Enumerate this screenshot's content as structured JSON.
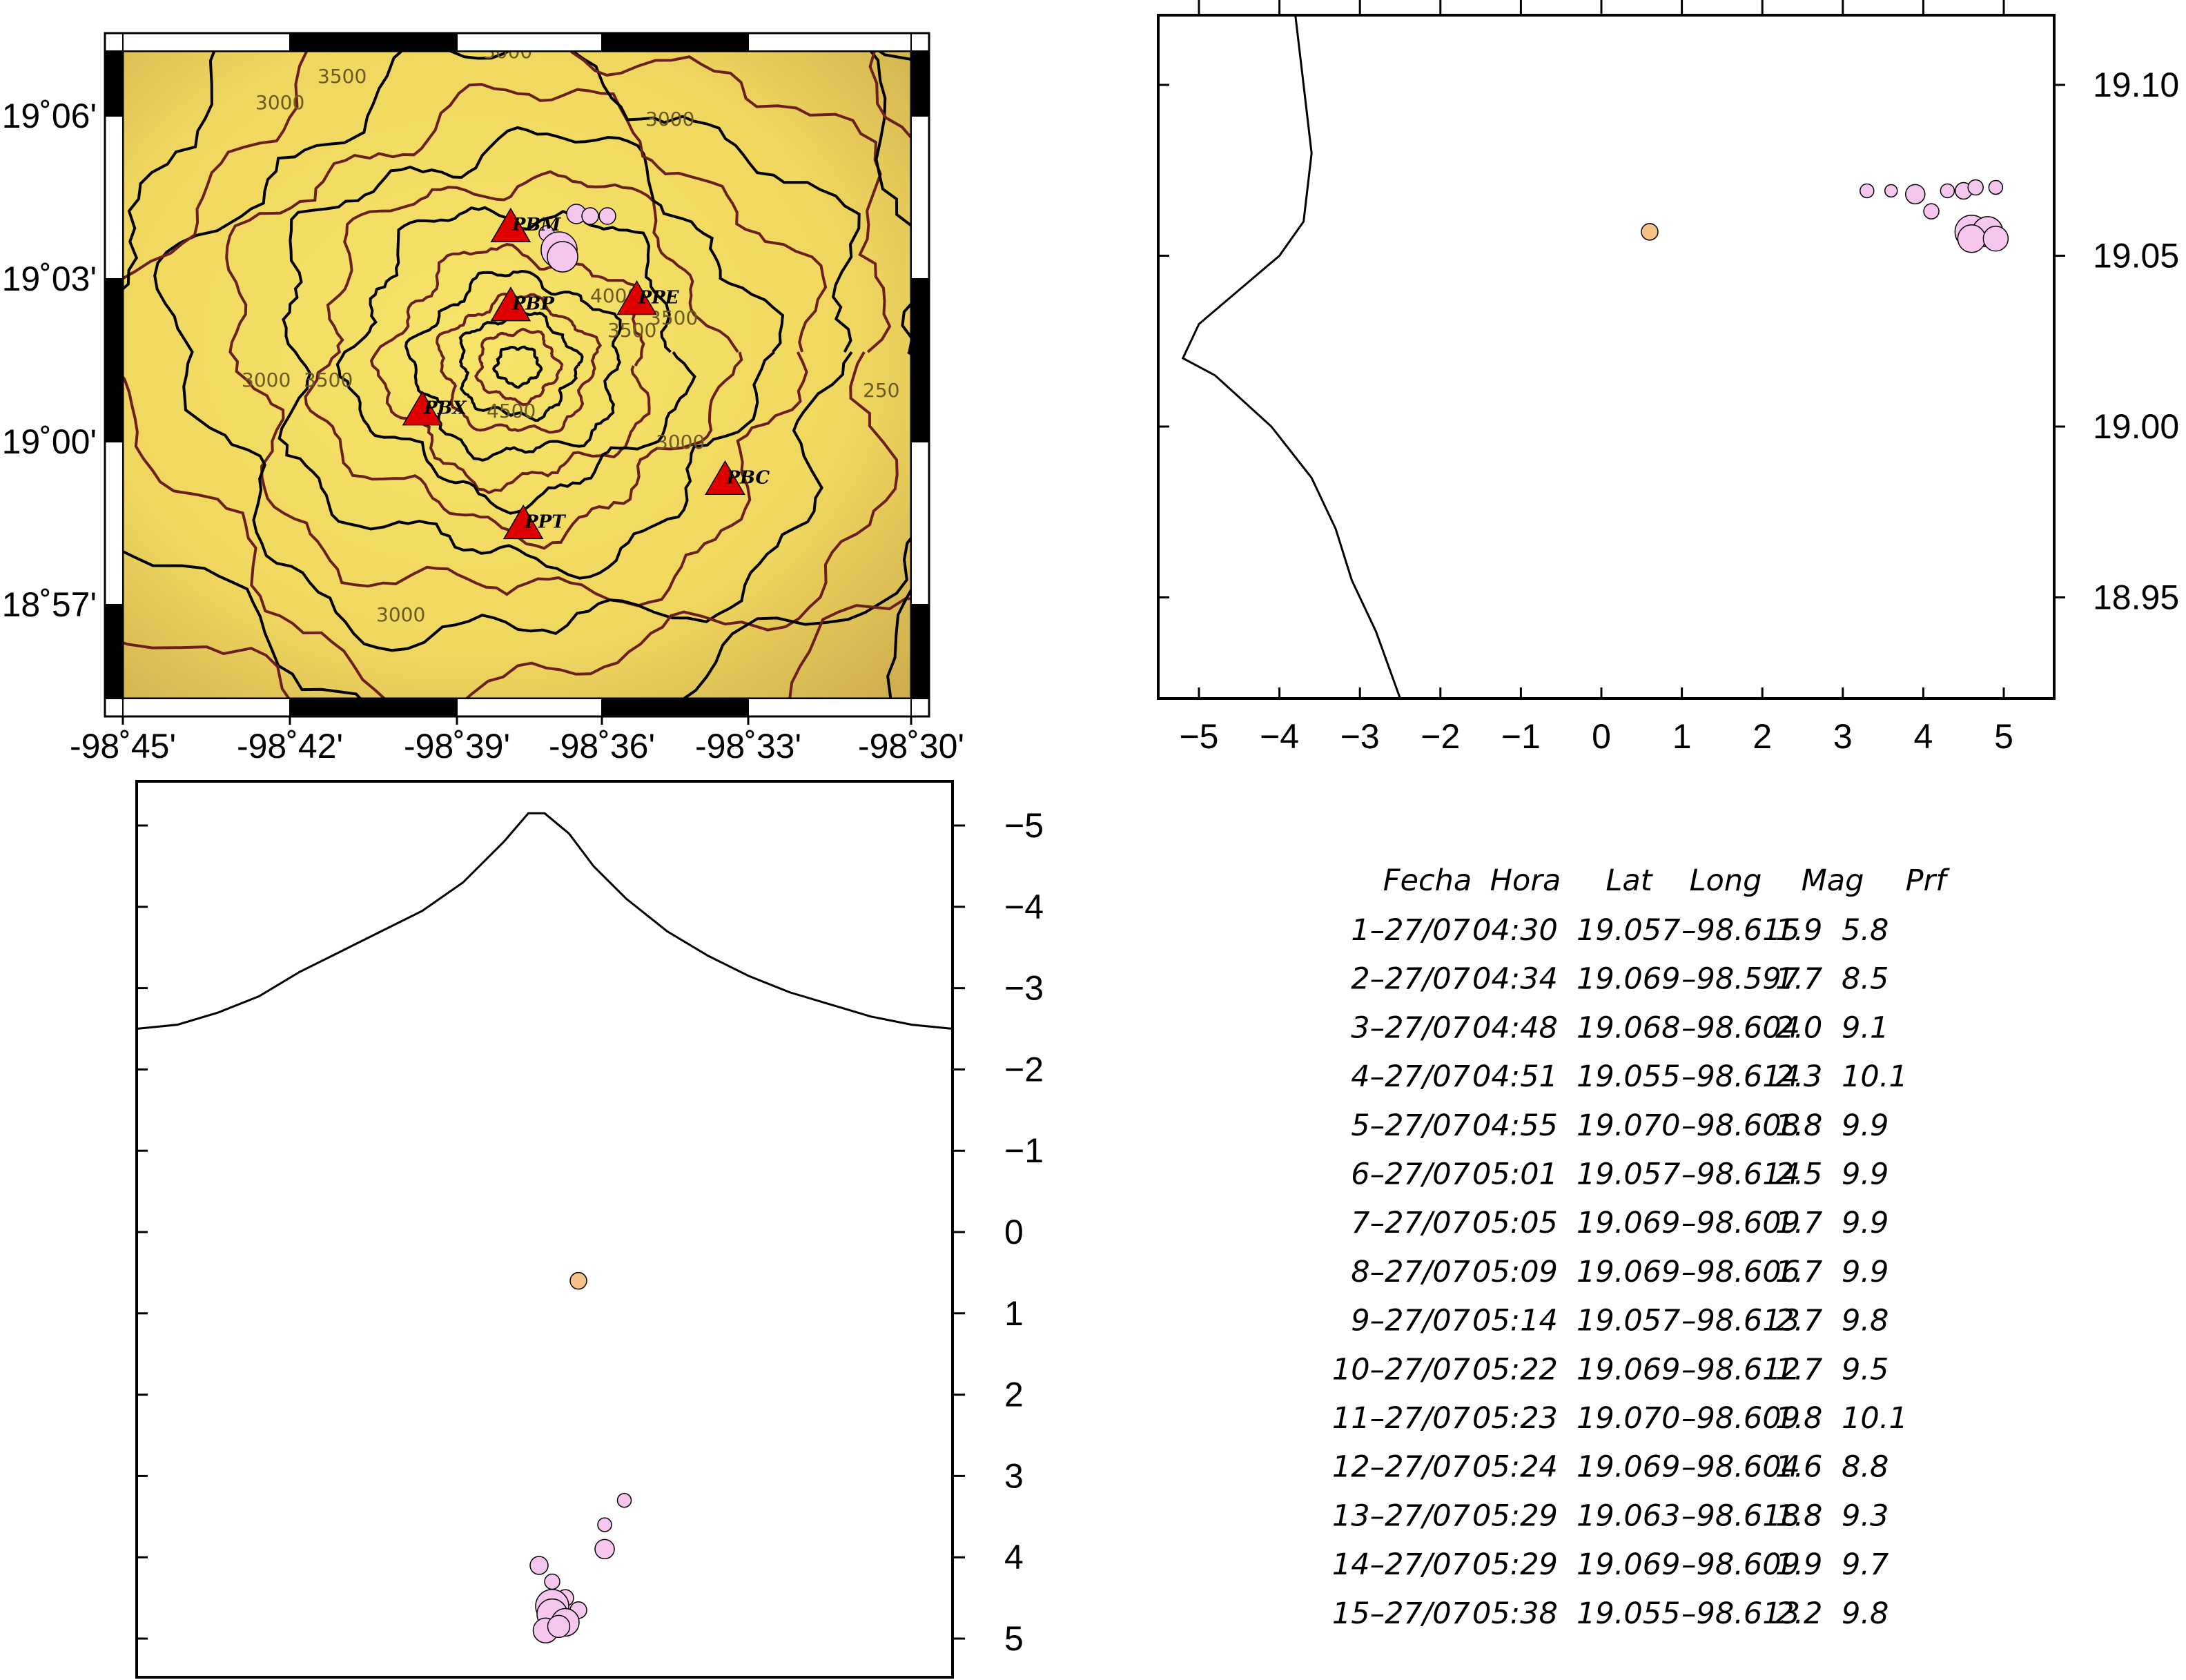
{
  "chart_data": [
    {
      "type": "scatter",
      "panel": "map",
      "x_ticks": [
        "-98˚45'",
        "-98˚42'",
        "-98˚39'",
        "-98˚36'",
        "-98˚33'",
        "-98˚30'"
      ],
      "y_ticks": [
        "19˚06'",
        "19˚03'",
        "19˚00'",
        "18˚57'"
      ],
      "xlim": [
        -98.75,
        -98.5
      ],
      "ylim": [
        18.92,
        19.125
      ],
      "contour_labels": [
        "3000",
        "3500",
        "3000",
        "3000",
        "3500",
        "4000",
        "3500",
        "3000",
        "3500",
        "4500",
        "3000",
        "3000",
        "250"
      ],
      "stations": [
        {
          "name": "PBM",
          "lon": -98.627,
          "lat": 19.069
        },
        {
          "name": "PBP",
          "lon": -98.627,
          "lat": 19.044
        },
        {
          "name": "PPE",
          "lon": -98.587,
          "lat": 19.046
        },
        {
          "name": "PBX",
          "lon": -98.655,
          "lat": 19.011
        },
        {
          "name": "PBC",
          "lon": -98.559,
          "lat": 18.989
        },
        {
          "name": "PPT",
          "lon": -98.623,
          "lat": 18.975
        }
      ],
      "station_color": "#e00000",
      "event_color": "#f6c6ef",
      "grid": false
    },
    {
      "type": "scatter",
      "panel": "cross-section-ns",
      "x_ticks": [
        "-5",
        "-4",
        "-3",
        "-2",
        "-1",
        "0",
        "1",
        "2",
        "3",
        "4",
        "5"
      ],
      "y_ticks": [
        "19.10",
        "19.05",
        "19.00",
        "18.95"
      ],
      "xlim": [
        -5.5,
        5.5
      ],
      "ylim": [
        18.92,
        19.12
      ],
      "topography": [
        [
          -3.8,
          19.12
        ],
        [
          -3.7,
          19.1
        ],
        [
          -3.6,
          19.08
        ],
        [
          -3.7,
          19.06
        ],
        [
          -4.0,
          19.05
        ],
        [
          -4.5,
          19.04
        ],
        [
          -5.0,
          19.03
        ],
        [
          -5.2,
          19.02
        ],
        [
          -4.8,
          19.015
        ],
        [
          -4.1,
          19.0
        ],
        [
          -3.6,
          18.985
        ],
        [
          -3.3,
          18.97
        ],
        [
          -3.1,
          18.955
        ],
        [
          -2.8,
          18.94
        ],
        [
          -2.5,
          18.92
        ]
      ],
      "points": [
        {
          "x": 0.6,
          "y": 19.057,
          "r": 12,
          "color": "#f6c28a"
        },
        {
          "x": 3.3,
          "y": 19.069,
          "r": 10,
          "color": "#f6c6ef"
        },
        {
          "x": 3.6,
          "y": 19.069,
          "r": 9,
          "color": "#f6c6ef"
        },
        {
          "x": 3.9,
          "y": 19.068,
          "r": 14,
          "color": "#f6c6ef"
        },
        {
          "x": 4.1,
          "y": 19.063,
          "r": 11,
          "color": "#f6c6ef"
        },
        {
          "x": 4.3,
          "y": 19.069,
          "r": 10,
          "color": "#f6c6ef"
        },
        {
          "x": 4.5,
          "y": 19.069,
          "r": 12,
          "color": "#f6c6ef"
        },
        {
          "x": 4.65,
          "y": 19.07,
          "r": 11,
          "color": "#f6c6ef"
        },
        {
          "x": 4.9,
          "y": 19.07,
          "r": 10,
          "color": "#f6c6ef"
        },
        {
          "x": 4.6,
          "y": 19.057,
          "r": 24,
          "color": "#f6c6ef"
        },
        {
          "x": 4.8,
          "y": 19.057,
          "r": 22,
          "color": "#f6c6ef"
        },
        {
          "x": 4.6,
          "y": 19.055,
          "r": 20,
          "color": "#f6c6ef"
        },
        {
          "x": 4.9,
          "y": 19.055,
          "r": 18,
          "color": "#f6c6ef"
        }
      ],
      "grid": false
    },
    {
      "type": "scatter",
      "panel": "cross-section-depth",
      "y_ticks": [
        "-5",
        "-4",
        "-3",
        "-2",
        "-1",
        "0",
        "1",
        "2",
        "3",
        "4",
        "5"
      ],
      "ylim": [
        -5.4,
        5.5
      ],
      "xlim": [
        -5,
        5
      ],
      "topography": [
        [
          -5,
          -2.5
        ],
        [
          -4.5,
          -2.55
        ],
        [
          -4,
          -2.7
        ],
        [
          -3.5,
          -2.9
        ],
        [
          -3,
          -3.2
        ],
        [
          -2.5,
          -3.45
        ],
        [
          -2,
          -3.7
        ],
        [
          -1.5,
          -3.95
        ],
        [
          -1,
          -4.3
        ],
        [
          -0.5,
          -4.8
        ],
        [
          -0.2,
          -5.15
        ],
        [
          0,
          -5.15
        ],
        [
          0.3,
          -4.9
        ],
        [
          0.6,
          -4.5
        ],
        [
          1,
          -4.1
        ],
        [
          1.5,
          -3.7
        ],
        [
          2,
          -3.4
        ],
        [
          2.5,
          -3.15
        ],
        [
          3,
          -2.95
        ],
        [
          3.5,
          -2.8
        ],
        [
          4,
          -2.65
        ],
        [
          4.5,
          -2.55
        ],
        [
          5,
          -2.5
        ]
      ],
      "points": [
        {
          "x": 0.5,
          "y": 0.6,
          "r": 12,
          "color": "#f6c28a"
        },
        {
          "x": 1.2,
          "y": 3.3,
          "r": 10,
          "color": "#f6c6ef"
        },
        {
          "x": 0.9,
          "y": 3.6,
          "r": 10,
          "color": "#f6c6ef"
        },
        {
          "x": 0.9,
          "y": 3.9,
          "r": 14,
          "color": "#f6c6ef"
        },
        {
          "x": -0.1,
          "y": 4.1,
          "r": 13,
          "color": "#f6c6ef"
        },
        {
          "x": 0.1,
          "y": 4.3,
          "r": 11,
          "color": "#f6c6ef"
        },
        {
          "x": 0.3,
          "y": 4.5,
          "r": 12,
          "color": "#f6c6ef"
        },
        {
          "x": 0.5,
          "y": 4.65,
          "r": 12,
          "color": "#f6c6ef"
        },
        {
          "x": 0.1,
          "y": 4.6,
          "r": 24,
          "color": "#f6c6ef"
        },
        {
          "x": 0.1,
          "y": 4.7,
          "r": 22,
          "color": "#f6c6ef"
        },
        {
          "x": 0.3,
          "y": 4.8,
          "r": 20,
          "color": "#f6c6ef"
        },
        {
          "x": 0.0,
          "y": 4.9,
          "r": 18,
          "color": "#f6c6ef"
        },
        {
          "x": 0.2,
          "y": 4.85,
          "r": 16,
          "color": "#f6c6ef"
        }
      ],
      "grid": false
    },
    {
      "type": "table",
      "headers": [
        "Fecha",
        "Hora",
        "Lat",
        "Long",
        "Mag",
        "Prf"
      ],
      "rows": [
        [
          "1-27/07",
          "04:30",
          "19.057",
          "-98.615",
          "1.9",
          "5.8"
        ],
        [
          "2-27/07",
          "04:34",
          "19.069",
          "-98.597",
          "1.7",
          "8.5"
        ],
        [
          "3-27/07",
          "04:48",
          "19.068",
          "-98.604",
          "2.0",
          "9.1"
        ],
        [
          "4-27/07",
          "04:51",
          "19.055",
          "-98.614",
          "2.3",
          "10.1"
        ],
        [
          "5-27/07",
          "04:55",
          "19.070",
          "-98.608",
          "1.8",
          "9.9"
        ],
        [
          "6-27/07",
          "05:01",
          "19.057",
          "-98.614",
          "2.5",
          "9.9"
        ],
        [
          "7-27/07",
          "05:05",
          "19.069",
          "-98.609",
          "1.7",
          "9.9"
        ],
        [
          "8-27/07",
          "05:09",
          "19.069",
          "-98.606",
          "1.7",
          "9.9"
        ],
        [
          "9-27/07",
          "05:14",
          "19.057",
          "-98.613",
          "2.7",
          "9.8"
        ],
        [
          "10-27/07",
          "05:22",
          "19.069",
          "-98.612",
          "1.7",
          "9.5"
        ],
        [
          "11-27/07",
          "05:23",
          "19.070",
          "-98.609",
          "1.8",
          "10.1"
        ],
        [
          "12-27/07",
          "05:24",
          "19.069",
          "-98.604",
          "1.6",
          "8.8"
        ],
        [
          "13-27/07",
          "05:29",
          "19.063",
          "-98.618",
          "1.8",
          "9.3"
        ],
        [
          "14-27/07",
          "05:29",
          "19.069",
          "-98.609",
          "1.9",
          "9.7"
        ],
        [
          "15-27/07",
          "05:38",
          "19.055",
          "-98.613",
          "2.2",
          "9.8"
        ]
      ]
    }
  ]
}
